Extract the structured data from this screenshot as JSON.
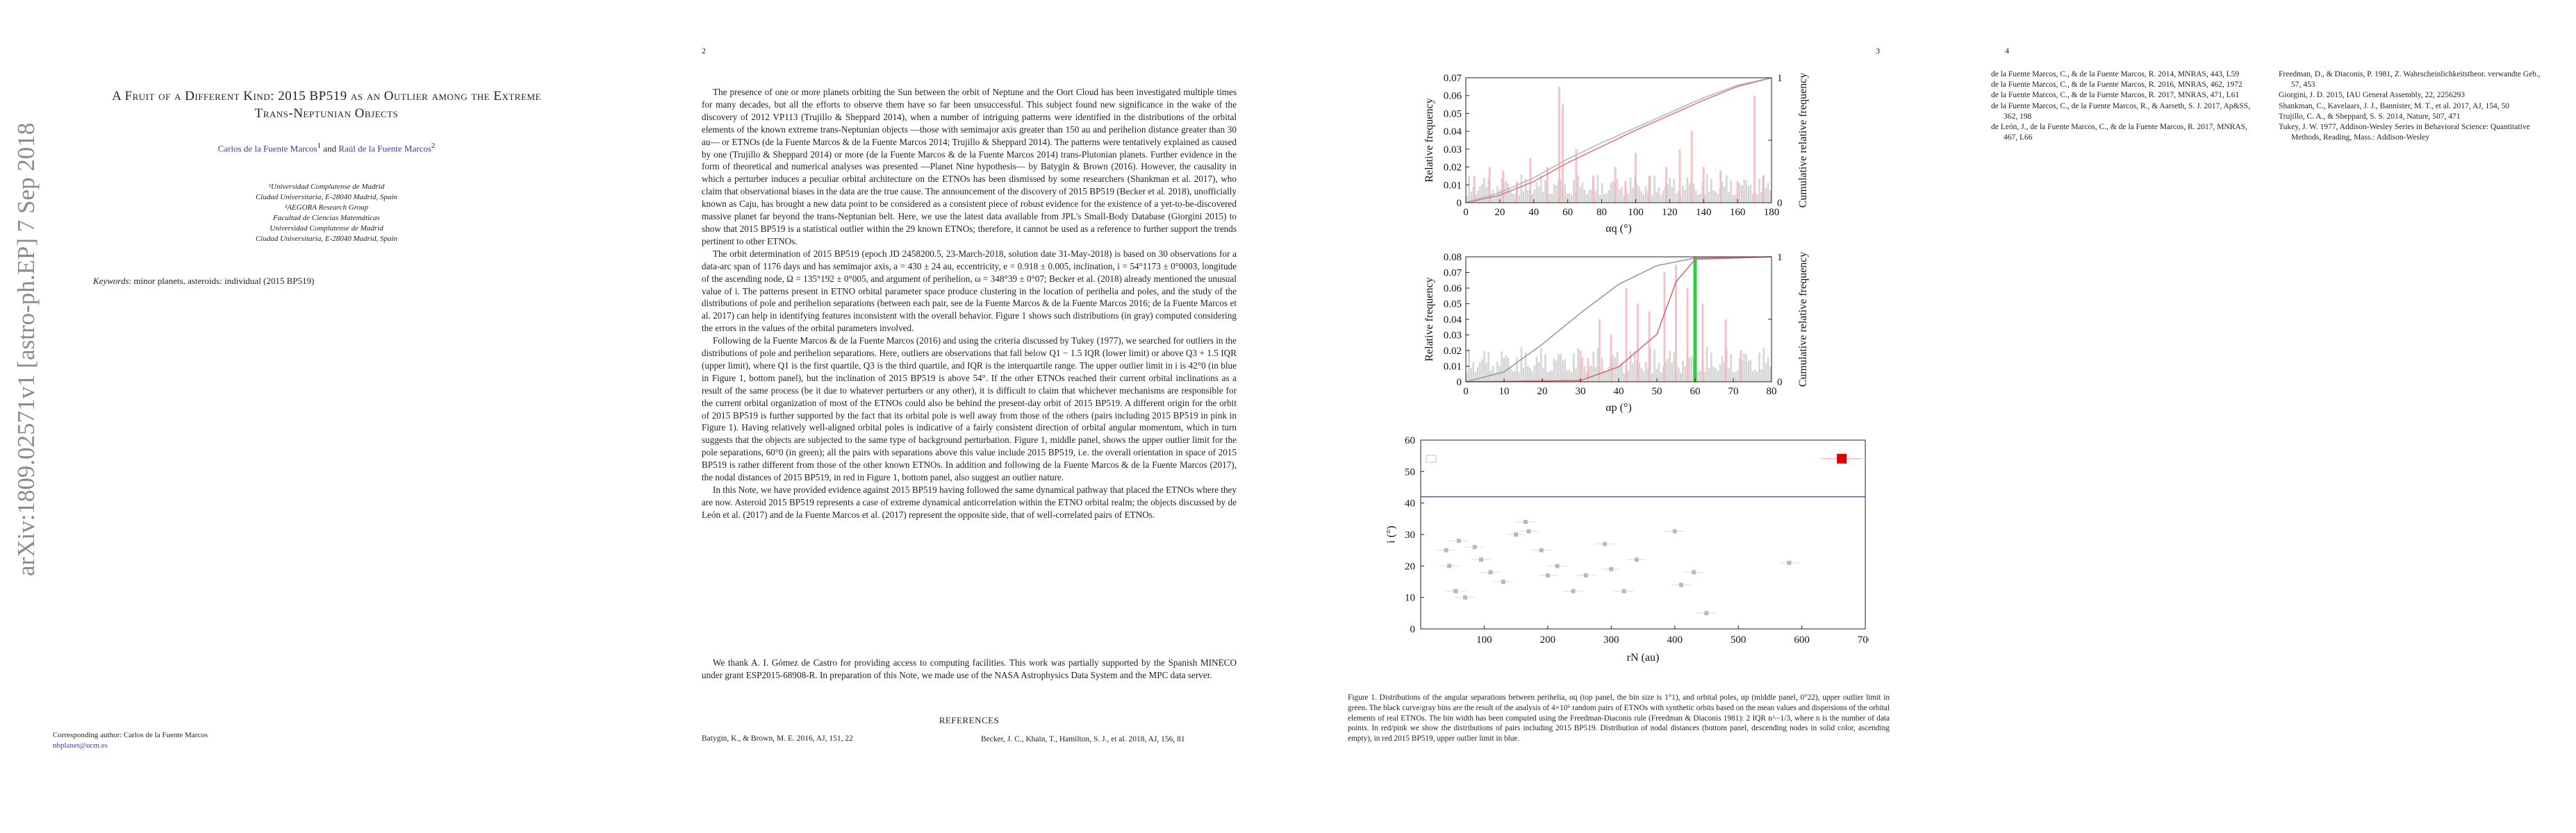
{
  "arxiv_stamp": "arXiv:1809.02571v1  [astro-ph.EP]  7 Sep 2018",
  "page1": {
    "title_line1": "A Fruit of a Different Kind: 2015 BP519 as an Outlier among the Extreme",
    "title_line2": "Trans-Neptunian Objects",
    "author1": "Carlos de la Fuente Marcos",
    "author_and": " and ",
    "author2": "Raúl de la Fuente Marcos",
    "affiliations": [
      "¹Universidad Complutense de Madrid",
      "Ciudad Universitaria, E-28040 Madrid, Spain",
      "²AEGORA Research Group",
      "Facultad de Ciencias Matemáticas",
      "Universidad Complutense de Madrid",
      "Ciudad Universitaria, E-28040 Madrid, Spain"
    ],
    "keywords_label": "Keywords",
    "keywords": ": minor planets, asteroids: individual (2015 BP519)",
    "corresponding": "Corresponding author: Carlos de la Fuente Marcos",
    "email": "nbplanet@ucm.es"
  },
  "page_numbers": {
    "p2": "2",
    "p3": "3",
    "p4": "4"
  },
  "page2": {
    "paragraphs": [
      "The presence of one or more planets orbiting the Sun between the orbit of Neptune and the Oort Cloud has been investigated multiple times for many decades, but all the efforts to observe them have so far been unsuccessful. This subject found new significance in the wake of the discovery of 2012 VP113 (Trujillo & Sheppard 2014), when a number of intriguing patterns were identified in the distributions of the orbital elements of the known extreme trans-Neptunian objects —those with semimajor axis greater than 150 au and perihelion distance greater than 30 au— or ETNOs (de la Fuente Marcos & de la Fuente Marcos 2014; Trujillo & Sheppard 2014). The patterns were tentatively explained as caused by one (Trujillo & Sheppard 2014) or more (de la Fuente Marcos & de la Fuente Marcos 2014) trans-Plutonian planets. Further evidence in the form of theoretical and numerical analyses was presented —Planet Nine hypothesis— by Batygin & Brown (2016). However, the causality in which a perturber induces a peculiar orbital architecture on the ETNOs has been dismissed by some researchers (Shankman et al. 2017), who claim that observational biases in the data are the true cause. The announcement of the discovery of 2015 BP519 (Becker et al. 2018), unofficially known as Caju, has brought a new data point to be considered as a consistent piece of robust evidence for the existence of a yet-to-be-discovered massive planet far beyond the trans-Neptunian belt. Here, we use the latest data available from JPL's Small-Body Database (Giorgini 2015) to show that 2015 BP519 is a statistical outlier within the 29 known ETNOs; therefore, it cannot be used as a reference to further support the trends pertinent to other ETNOs.",
      "The orbit determination of 2015 BP519 (epoch JD 2458200.5, 23-March-2018, solution date 31-May-2018) is based on 30 observations for a data-arc span of 1176 days and has semimajor axis, a = 430 ± 24 au, eccentricity, e = 0.918 ± 0.005, inclination, i = 54°1173 ± 0°0003, longitude of the ascending node, Ω = 135°192 ± 0°005, and argument of perihelion, ω = 348°39 ± 0°07; Becker et al. (2018) already mentioned the unusual value of i. The patterns present in ETNO orbital parameter space produce clustering in the location of perihelia and poles, and the study of the distributions of pole and perihelion separations (between each pair, see de la Fuente Marcos & de la Fuente Marcos 2016; de la Fuente Marcos et al. 2017) can help in identifying features inconsistent with the overall behavior. Figure 1 shows such distributions (in gray) computed considering the errors in the values of the orbital parameters involved.",
      "Following de la Fuente Marcos & de la Fuente Marcos (2016) and using the criteria discussed by Tukey (1977), we searched for outliers in the distributions of pole and perihelion separations. Here, outliers are observations that fall below Q1 − 1.5 IQR (lower limit) or above Q3 + 1.5 IQR (upper limit), where Q1 is the first quartile, Q3 is the third quartile, and IQR is the interquartile range. The upper outlier limit in i is 42°0 (in blue in Figure 1, bottom panel), but the inclination of 2015 BP519 is above 54°. If the other ETNOs reached their current orbital inclinations as a result of the same process (be it due to whatever perturbers or any other), it is difficult to claim that whichever mechanisms are responsible for the current orbital organization of most of the ETNOs could also be behind the present-day orbit of 2015 BP519. A different origin for the orbit of 2015 BP519 is further supported by the fact that its orbital pole is well away from those of the others (pairs including 2015 BP519 in pink in Figure 1). Having relatively well-aligned orbital poles is indicative of a fairly consistent direction of orbital angular momentum, which in turn suggests that the objects are subjected to the same type of background perturbation. Figure 1, middle panel, shows the upper outlier limit for the pole separations, 60°0 (in green); all the pairs with separations above this value include 2015 BP519, i.e. the overall orientation in space of 2015 BP519 is rather different from those of the other known ETNOs. In addition and following de la Fuente Marcos & de la Fuente Marcos (2017), the nodal distances of 2015 BP519, in red in Figure 1, bottom panel, also suggest an outlier nature.",
      "In this Note, we have provided evidence against 2015 BP519 having followed the same dynamical pathway that placed the ETNOs where they are now. Asteroid 2015 BP519 represents a case of extreme dynamical anticorrelation within the ETNO orbital realm; the objects discussed by de León et al. (2017) and de la Fuente Marcos et al. (2017) represent the opposite side, that of well-correlated pairs of ETNOs."
    ],
    "acknowledgments": "We thank A. I. Gómez de Castro for providing access to computing facilities. This work was partially supported by the Spanish MINECO under grant ESP2015-68908-R. In preparation of this Note, we made use of the NASA Astrophysics Data System and the MPC data server.",
    "references_heading": "REFERENCES",
    "ref_left": "Batygin, K., & Brown, M. E. 2016, AJ, 151, 22",
    "ref_right": "Becker, J. C., Khain, T., Hamilton, S. J., et al. 2018, AJ, 156, 81"
  },
  "chart_data": [
    {
      "type": "bar",
      "panel": "top",
      "xlabel": "αq (°)",
      "ylabel": "Relative frequency",
      "y2label": "Cumulative relative frequency",
      "xlim": [
        0,
        180
      ],
      "ylim": [
        0,
        0.07
      ],
      "y2lim": [
        0,
        1
      ],
      "xticks": [
        "0",
        "20",
        "40",
        "60",
        "80",
        "100",
        "120",
        "140",
        "160",
        "180"
      ],
      "yticks": [
        "0",
        "0.01",
        "0.02",
        "0.03",
        "0.04",
        "0.05",
        "0.06",
        "0.07"
      ],
      "y2ticks": [
        "0",
        "0.5",
        "1"
      ],
      "series": [
        {
          "color": "#b8b8b8",
          "cumulative_x": [
            0,
            20,
            40,
            60,
            80,
            100,
            120,
            140,
            160,
            180
          ],
          "cumulative_y": [
            0,
            0.08,
            0.2,
            0.35,
            0.48,
            0.6,
            0.72,
            0.84,
            0.94,
            1.0
          ]
        },
        {
          "color": "#e07a84",
          "cumulative_x": [
            0,
            20,
            40,
            60,
            80,
            100,
            120,
            140,
            160,
            180
          ],
          "cumulative_y": [
            0,
            0.06,
            0.17,
            0.32,
            0.45,
            0.58,
            0.7,
            0.82,
            0.93,
            1.0
          ]
        }
      ],
      "pink_peaks_x": [
        5,
        14,
        22,
        30,
        38,
        48,
        55,
        57,
        65,
        75,
        88,
        94,
        100,
        108,
        118,
        126,
        133,
        140,
        150,
        160,
        170,
        175
      ],
      "pink_peaks_y": [
        0.015,
        0.02,
        0.018,
        0.012,
        0.025,
        0.02,
        0.065,
        0.055,
        0.03,
        0.015,
        0.02,
        0.012,
        0.028,
        0.015,
        0.02,
        0.03,
        0.04,
        0.02,
        0.018,
        0.012,
        0.06,
        0.015
      ],
      "upper_outlier_limit": null
    },
    {
      "type": "bar",
      "panel": "middle",
      "xlabel": "αp (°)",
      "ylabel": "Relative frequency",
      "y2label": "Cumulative relative frequency",
      "xlim": [
        0,
        80
      ],
      "ylim": [
        0,
        0.08
      ],
      "y2lim": [
        0,
        1
      ],
      "xticks": [
        "0",
        "10",
        "20",
        "30",
        "40",
        "50",
        "60",
        "70",
        "80"
      ],
      "yticks": [
        "0",
        "0.01",
        "0.02",
        "0.03",
        "0.04",
        "0.05",
        "0.06",
        "0.07",
        "0.08"
      ],
      "y2ticks": [
        "0",
        "0.5",
        "1"
      ],
      "series": [
        {
          "color": "#9a9a9a",
          "cumulative_x": [
            0,
            10,
            20,
            30,
            40,
            50,
            60,
            80
          ],
          "cumulative_y": [
            0,
            0.08,
            0.3,
            0.55,
            0.78,
            0.93,
            0.99,
            1.0
          ]
        },
        {
          "color": "#d86a78",
          "cumulative_x": [
            0,
            30,
            40,
            50,
            55,
            60,
            80
          ],
          "cumulative_y": [
            0,
            0.01,
            0.12,
            0.38,
            0.8,
            0.98,
            1.0
          ]
        }
      ],
      "pink_peaks_x": [
        30,
        32,
        35,
        38,
        42,
        45,
        48,
        52,
        55,
        58,
        62,
        68,
        72
      ],
      "pink_peaks_y": [
        0.02,
        0.015,
        0.04,
        0.03,
        0.06,
        0.05,
        0.045,
        0.07,
        0.075,
        0.06,
        0.05,
        0.04,
        0.02
      ],
      "upper_outlier_limit": 60.0,
      "limit_color": "#2ecc40"
    },
    {
      "type": "scatter",
      "panel": "bottom",
      "xlabel": "rN (au)",
      "ylabel": "i (°)",
      "xlim": [
        0,
        700
      ],
      "ylim": [
        0,
        60
      ],
      "xticks": [
        "100",
        "200",
        "300",
        "400",
        "500",
        "600",
        "700"
      ],
      "yticks": [
        "0",
        "10",
        "20",
        "30",
        "40",
        "50",
        "60"
      ],
      "points_x": [
        40,
        45,
        55,
        60,
        70,
        85,
        95,
        110,
        130,
        150,
        165,
        170,
        190,
        200,
        215,
        240,
        260,
        290,
        300,
        320,
        340,
        400,
        410,
        430,
        450,
        580
      ],
      "points_y": [
        25,
        20,
        12,
        28,
        10,
        26,
        22,
        18,
        15,
        30,
        34,
        31,
        25,
        17,
        20,
        12,
        17,
        27,
        19,
        12,
        22,
        31,
        14,
        18,
        5,
        21
      ],
      "outlier_point": {
        "x": 663,
        "y": 54.1,
        "color": "#dd0000"
      },
      "upper_outlier_limit": 42.0,
      "limit_color": "#5050d0"
    }
  ],
  "figure_caption": "Figure 1. Distributions of the angular separations between perihelia, αq (top panel, the bin size is 1°1), and orbital poles, αp (middle panel, 0°22), upper outlier limit in green. The black curve/gray bins are the result of the analysis of 4×10⁶ random pairs of ETNOs with synthetic orbits based on the mean values and dispersions of the orbital elements of real ETNOs. The bin width has been computed using the Freedman-Diaconis rule (Freedman & Diaconis 1981): 2 IQR n^−1/3, where n is the number of data points. In red/pink we show the distributions of pairs including 2015 BP519. Distribution of nodal distances (bottom panel, descending nodes in solid color, ascending empty), in red 2015 BP519, upper outlier limit in blue.",
  "page4": {
    "refs_col1": [
      "de la Fuente Marcos, C., & de la Fuente Marcos, R. 2014, MNRAS, 443, L59",
      "de la Fuente Marcos, C., & de la Fuente Marcos, R. 2016, MNRAS, 462, 1972",
      "de la Fuente Marcos, C., & de la Fuente Marcos, R. 2017, MNRAS, 471, L61",
      "de la Fuente Marcos, C., de la Fuente Marcos, R., & Aarseth, S. J. 2017, Ap&SS, 362, 198",
      "de León, J., de la Fuente Marcos, C., & de la Fuente Marcos, R. 2017, MNRAS, 467, L66"
    ],
    "refs_col2": [
      "Freedman, D., & Diaconis, P. 1981, Z. Wahrscheinlichkeitstheor. verwandte Geb., 57, 453",
      "Giorgini, J. D. 2015, IAU General Assembly, 22, 2256293",
      "Shankman, C., Kavelaars, J. J., Bannister, M. T., et al. 2017, AJ, 154, 50",
      "Trujillo, C. A., & Sheppard, S. S. 2014, Nature, 507, 471",
      "Tukey, J. W. 1977, Addison-Wesley Series in Behavioral Science: Quantitative Methods, Reading, Mass.: Addison-Wesley"
    ]
  }
}
